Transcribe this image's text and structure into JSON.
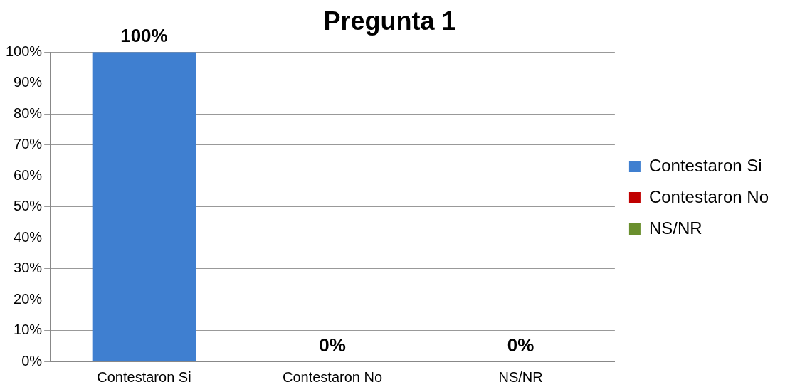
{
  "chart_data": {
    "type": "bar",
    "title": "Pregunta 1",
    "categories": [
      "Contestaron Si",
      "Contestaron No",
      "NS/NR"
    ],
    "series": [
      {
        "name": "Contestaron Si",
        "color": "#3f7fd0",
        "values": [
          100,
          null,
          null
        ],
        "value_labels": [
          "100%",
          null,
          null
        ]
      },
      {
        "name": "Contestaron No",
        "color": "#c00000",
        "values": [
          null,
          0,
          null
        ],
        "value_labels": [
          null,
          "0%",
          null
        ]
      },
      {
        "name": "NS/NR",
        "color": "#6a8f2e",
        "values": [
          null,
          null,
          0
        ],
        "value_labels": [
          null,
          null,
          "0%"
        ]
      }
    ],
    "ylim": [
      0,
      100
    ],
    "yticks": [
      {
        "value": 0,
        "label": "0%"
      },
      {
        "value": 10,
        "label": "10%"
      },
      {
        "value": 20,
        "label": "20%"
      },
      {
        "value": 30,
        "label": "30%"
      },
      {
        "value": 40,
        "label": "40%"
      },
      {
        "value": 50,
        "label": "50%"
      },
      {
        "value": 60,
        "label": "60%"
      },
      {
        "value": 70,
        "label": "70%"
      },
      {
        "value": 80,
        "label": "80%"
      },
      {
        "value": 90,
        "label": "90%"
      },
      {
        "value": 100,
        "label": "100%"
      }
    ],
    "grid": "y",
    "legend": "right"
  }
}
